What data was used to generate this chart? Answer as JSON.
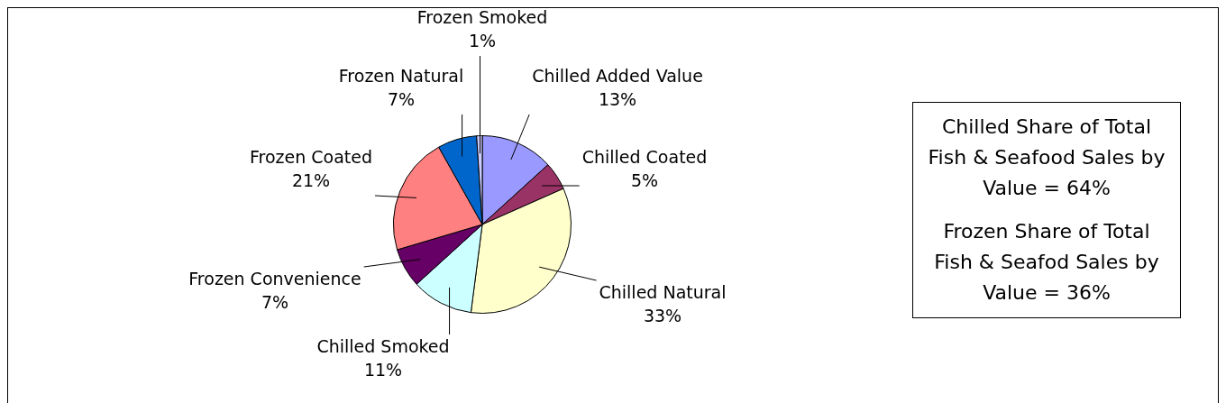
{
  "chart_data": {
    "type": "pie",
    "categories": [
      "Chilled Added Value",
      "Chilled Coated",
      "Chilled Natural",
      "Chilled Smoked",
      "Frozen Convenience",
      "Frozen Coated",
      "Frozen Natural",
      "Frozen Smoked"
    ],
    "values": [
      13,
      5,
      33,
      11,
      7,
      21,
      7,
      1
    ],
    "colors": [
      "#9999ff",
      "#993366",
      "#ffffcc",
      "#ccffff",
      "#660066",
      "#ff8080",
      "#0066cc",
      "#ccccff"
    ],
    "value_labels": [
      "13%",
      "5%",
      "33%",
      "11%",
      "7%",
      "21%",
      "7%",
      "1%"
    ],
    "annotations": [
      "Chilled Share of Total Fish & Seafood Sales by Value = 64%",
      "Frozen Share of Total Fish & Seafod Sales by Value = 36%"
    ],
    "legend": false
  }
}
